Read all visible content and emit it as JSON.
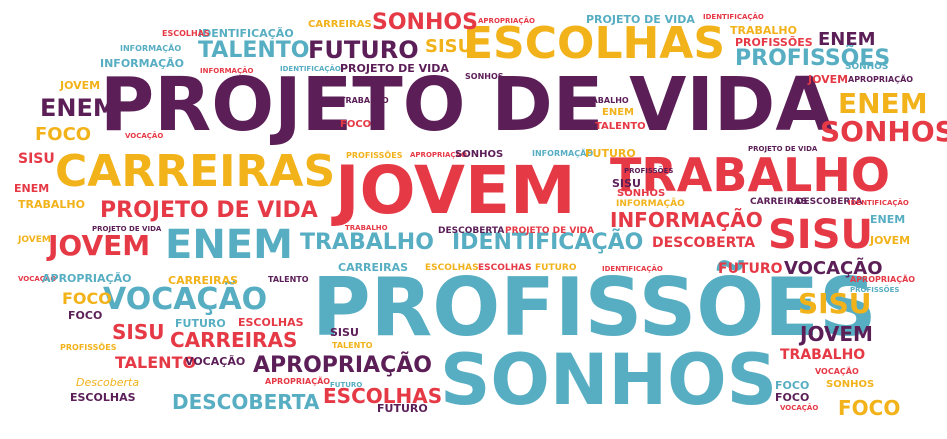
{
  "palette": {
    "purple": "#5b1e57",
    "red": "#e63946",
    "yellow": "#f2b21a",
    "teal": "#57aec2"
  },
  "words": [
    "PROJETO DE VIDA",
    "PROFISSÕES",
    "SONHOS",
    "JOVEM",
    "CARREIRAS",
    "ESCOLHAS",
    "TRABALHO",
    "ENEM",
    "SISU",
    "VOCAÇÃO",
    "FUTURO",
    "IDENTIFICAÇÃO",
    "APROPRIAÇÃO",
    "DESCOBERTA",
    "TALENTO",
    "INFORMAÇÃO",
    "FOCO",
    "Descoberta"
  ]
}
